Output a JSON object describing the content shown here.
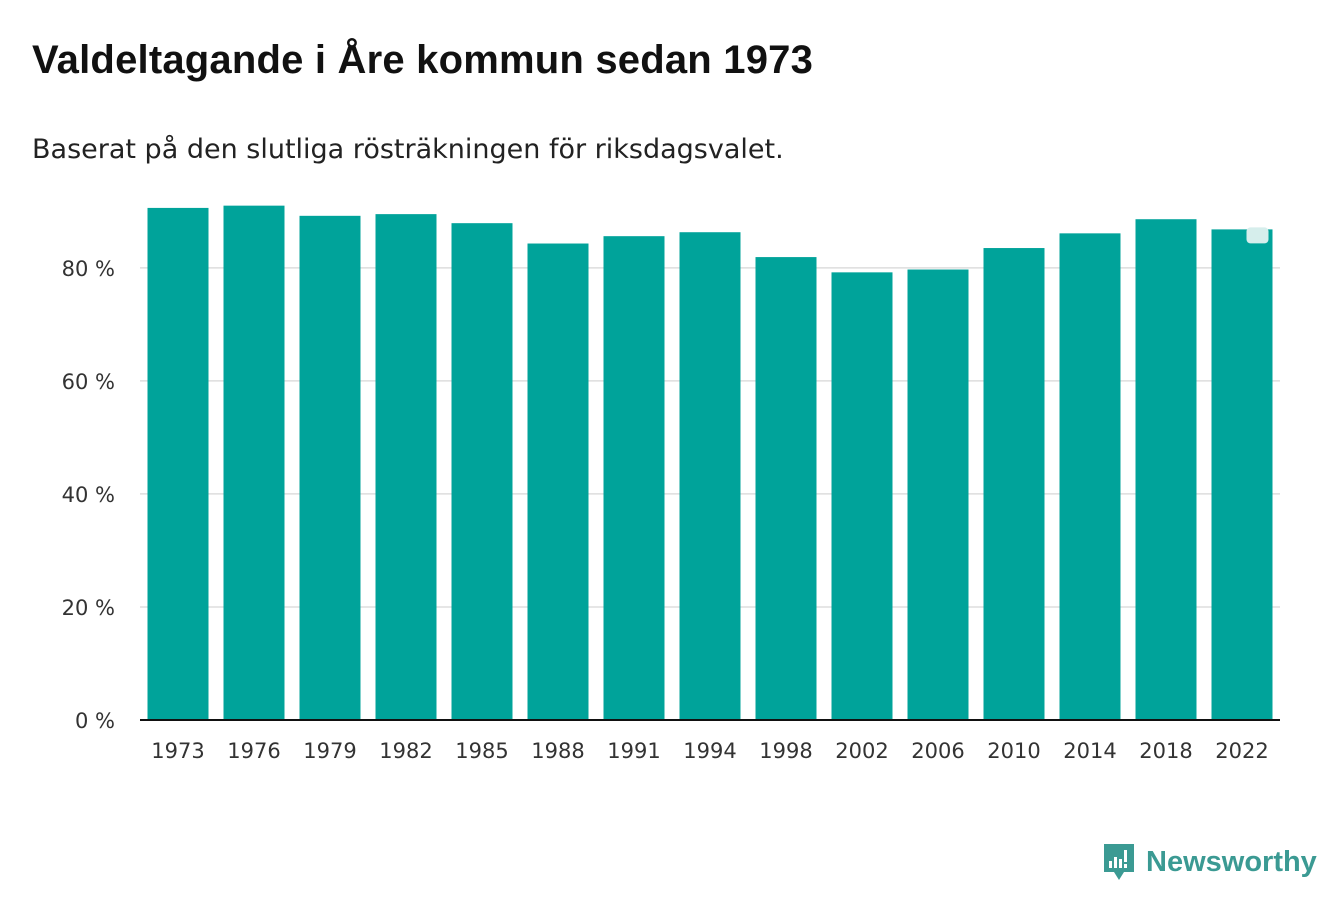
{
  "title": "Valdeltagande i Åre kommun sedan 1973",
  "subtitle": "Baserat på den slutliga rösträkningen för riksdagsvalet.",
  "brand": {
    "name": "Newsworthy",
    "icon": "newsworthy-logo-icon",
    "color": "#3b9a93"
  },
  "chart_data": {
    "type": "bar",
    "categories": [
      "1973",
      "1976",
      "1979",
      "1982",
      "1985",
      "1988",
      "1991",
      "1994",
      "1998",
      "2002",
      "2006",
      "2010",
      "2014",
      "2018",
      "2022"
    ],
    "values": [
      90.6,
      91.0,
      89.2,
      89.5,
      87.9,
      84.3,
      85.6,
      86.3,
      81.9,
      79.2,
      79.7,
      83.5,
      86.1,
      88.6,
      86.8
    ],
    "ylim": [
      0,
      92
    ],
    "yticks": [
      0,
      20,
      40,
      60,
      80
    ],
    "ytick_labels": [
      "0 %",
      "20 %",
      "40 %",
      "60 %",
      "80 %"
    ],
    "grid": true,
    "bar_color": "#00a39a",
    "highlight": {
      "category": "2022",
      "color": "#d6eeec"
    }
  }
}
